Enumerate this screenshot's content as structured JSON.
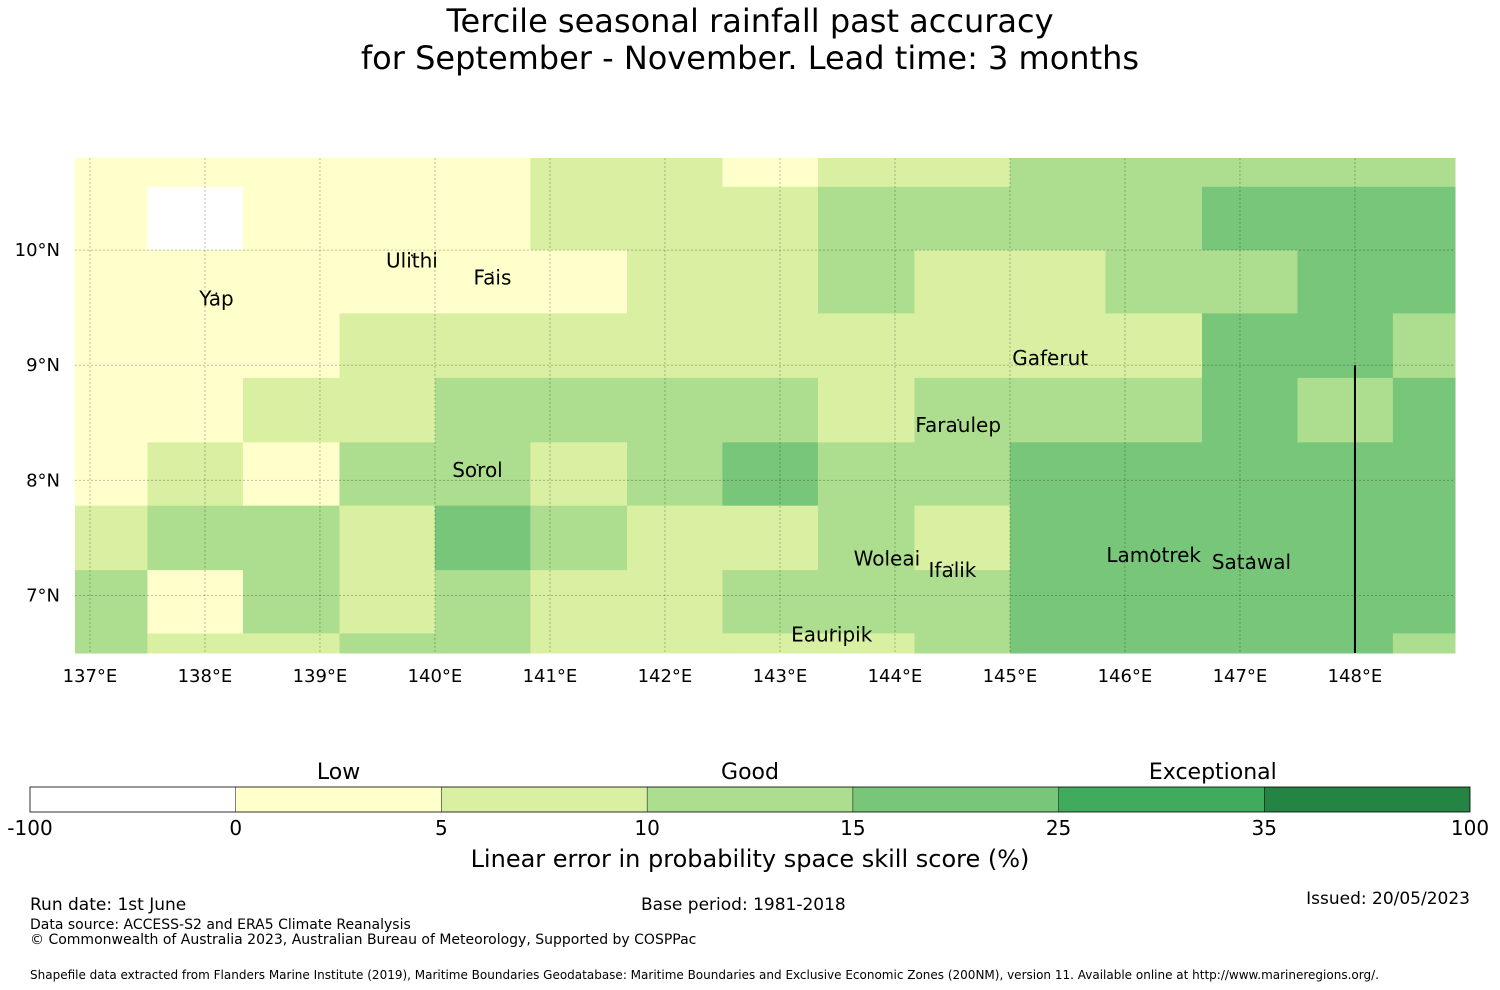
{
  "title": {
    "line1": "Tercile seasonal rainfall past accuracy",
    "line2": "for September - November. Lead time: 3 months"
  },
  "map": {
    "lon_range": [
      136.87,
      148.87
    ],
    "lat_range": [
      6.5,
      10.8
    ],
    "x_ticks": [
      "137°E",
      "138°E",
      "139°E",
      "140°E",
      "141°E",
      "142°E",
      "143°E",
      "144°E",
      "145°E",
      "146°E",
      "147°E",
      "148°E"
    ],
    "x_tick_values": [
      137,
      138,
      139,
      140,
      141,
      142,
      143,
      144,
      145,
      146,
      147,
      148
    ],
    "y_ticks": [
      "7°N",
      "8°N",
      "9°N",
      "10°N"
    ],
    "y_tick_values": [
      7,
      8,
      9,
      10
    ],
    "grid": true,
    "category_colors": {
      "W": "#ffffff",
      "A": "#ffffcc",
      "B": "#d9f0a3",
      "C": "#addd8e",
      "D": "#78c679",
      "E": "#41ab5d",
      "F": "#238443"
    },
    "cells": [
      {
        "lon": [
          136.87,
          137.5
        ],
        "lat": [
          10.55,
          10.8
        ],
        "cat": "A"
      },
      {
        "lon": [
          137.5,
          138.33
        ],
        "lat": [
          10.55,
          10.8
        ],
        "cat": "A"
      },
      {
        "lon": [
          138.33,
          140.83
        ],
        "lat": [
          10.55,
          10.8
        ],
        "cat": "A"
      },
      {
        "lon": [
          140.83,
          142.5
        ],
        "lat": [
          10.55,
          10.8
        ],
        "cat": "B"
      },
      {
        "lon": [
          142.5,
          143.33
        ],
        "lat": [
          10.55,
          10.8
        ],
        "cat": "A"
      },
      {
        "lon": [
          143.33,
          145.0
        ],
        "lat": [
          10.55,
          10.8
        ],
        "cat": "B"
      },
      {
        "lon": [
          145.0,
          148.87
        ],
        "lat": [
          10.55,
          10.8
        ],
        "cat": "C"
      },
      {
        "lon": [
          136.87,
          137.5
        ],
        "lat": [
          10.0,
          10.55
        ],
        "cat": "A"
      },
      {
        "lon": [
          137.5,
          138.33
        ],
        "lat": [
          10.0,
          10.55
        ],
        "cat": "W"
      },
      {
        "lon": [
          138.33,
          140.83
        ],
        "lat": [
          10.0,
          10.55
        ],
        "cat": "A"
      },
      {
        "lon": [
          140.83,
          143.33
        ],
        "lat": [
          10.0,
          10.55
        ],
        "cat": "B"
      },
      {
        "lon": [
          143.33,
          146.67
        ],
        "lat": [
          10.0,
          10.55
        ],
        "cat": "C"
      },
      {
        "lon": [
          146.67,
          148.87
        ],
        "lat": [
          10.0,
          10.55
        ],
        "cat": "D"
      },
      {
        "lon": [
          136.87,
          140.83
        ],
        "lat": [
          9.45,
          10.0
        ],
        "cat": "A"
      },
      {
        "lon": [
          140.83,
          141.67
        ],
        "lat": [
          9.45,
          10.0
        ],
        "cat": "A"
      },
      {
        "lon": [
          141.67,
          143.33
        ],
        "lat": [
          9.45,
          10.0
        ],
        "cat": "B"
      },
      {
        "lon": [
          143.33,
          144.17
        ],
        "lat": [
          9.45,
          10.0
        ],
        "cat": "C"
      },
      {
        "lon": [
          144.17,
          145.83
        ],
        "lat": [
          9.45,
          10.0
        ],
        "cat": "B"
      },
      {
        "lon": [
          145.83,
          147.5
        ],
        "lat": [
          9.45,
          10.0
        ],
        "cat": "C"
      },
      {
        "lon": [
          147.5,
          148.87
        ],
        "lat": [
          9.45,
          10.0
        ],
        "cat": "D"
      },
      {
        "lon": [
          136.87,
          139.17
        ],
        "lat": [
          8.89,
          9.45
        ],
        "cat": "A"
      },
      {
        "lon": [
          139.17,
          146.67
        ],
        "lat": [
          8.89,
          9.45
        ],
        "cat": "B"
      },
      {
        "lon": [
          146.67,
          148.33
        ],
        "lat": [
          8.89,
          9.45
        ],
        "cat": "D"
      },
      {
        "lon": [
          148.33,
          148.87
        ],
        "lat": [
          8.89,
          9.45
        ],
        "cat": "C"
      },
      {
        "lon": [
          136.87,
          138.33
        ],
        "lat": [
          8.33,
          8.89
        ],
        "cat": "A"
      },
      {
        "lon": [
          138.33,
          140.0
        ],
        "lat": [
          8.33,
          8.89
        ],
        "cat": "B"
      },
      {
        "lon": [
          140.0,
          143.33
        ],
        "lat": [
          8.33,
          8.89
        ],
        "cat": "C"
      },
      {
        "lon": [
          143.33,
          144.17
        ],
        "lat": [
          8.33,
          8.89
        ],
        "cat": "B"
      },
      {
        "lon": [
          144.17,
          146.67
        ],
        "lat": [
          8.33,
          8.89
        ],
        "cat": "C"
      },
      {
        "lon": [
          146.67,
          147.5
        ],
        "lat": [
          8.33,
          8.89
        ],
        "cat": "D"
      },
      {
        "lon": [
          147.5,
          148.33
        ],
        "lat": [
          8.33,
          8.89
        ],
        "cat": "C"
      },
      {
        "lon": [
          148.33,
          148.87
        ],
        "lat": [
          8.33,
          8.89
        ],
        "cat": "D"
      },
      {
        "lon": [
          136.87,
          137.5
        ],
        "lat": [
          7.78,
          8.33
        ],
        "cat": "A"
      },
      {
        "lon": [
          137.5,
          138.33
        ],
        "lat": [
          7.78,
          8.33
        ],
        "cat": "B"
      },
      {
        "lon": [
          138.33,
          139.17
        ],
        "lat": [
          7.78,
          8.33
        ],
        "cat": "A"
      },
      {
        "lon": [
          139.17,
          140.83
        ],
        "lat": [
          7.78,
          8.33
        ],
        "cat": "C"
      },
      {
        "lon": [
          140.83,
          141.67
        ],
        "lat": [
          7.78,
          8.33
        ],
        "cat": "B"
      },
      {
        "lon": [
          141.67,
          142.5
        ],
        "lat": [
          7.78,
          8.33
        ],
        "cat": "C"
      },
      {
        "lon": [
          142.5,
          143.33
        ],
        "lat": [
          7.78,
          8.33
        ],
        "cat": "D"
      },
      {
        "lon": [
          143.33,
          145.0
        ],
        "lat": [
          7.78,
          8.33
        ],
        "cat": "C"
      },
      {
        "lon": [
          145.0,
          148.87
        ],
        "lat": [
          7.78,
          8.33
        ],
        "cat": "D"
      },
      {
        "lon": [
          136.87,
          137.5
        ],
        "lat": [
          7.22,
          7.78
        ],
        "cat": "B"
      },
      {
        "lon": [
          137.5,
          139.17
        ],
        "lat": [
          7.22,
          7.78
        ],
        "cat": "C"
      },
      {
        "lon": [
          139.17,
          140.0
        ],
        "lat": [
          7.22,
          7.78
        ],
        "cat": "B"
      },
      {
        "lon": [
          140.0,
          140.83
        ],
        "lat": [
          7.22,
          7.78
        ],
        "cat": "D"
      },
      {
        "lon": [
          140.83,
          141.67
        ],
        "lat": [
          7.22,
          7.78
        ],
        "cat": "C"
      },
      {
        "lon": [
          141.67,
          143.33
        ],
        "lat": [
          7.22,
          7.78
        ],
        "cat": "B"
      },
      {
        "lon": [
          143.33,
          144.17
        ],
        "lat": [
          7.22,
          7.78
        ],
        "cat": "C"
      },
      {
        "lon": [
          144.17,
          145.0
        ],
        "lat": [
          7.22,
          7.78
        ],
        "cat": "B"
      },
      {
        "lon": [
          145.0,
          148.87
        ],
        "lat": [
          7.22,
          7.78
        ],
        "cat": "D"
      },
      {
        "lon": [
          136.87,
          137.5
        ],
        "lat": [
          6.67,
          7.22
        ],
        "cat": "C"
      },
      {
        "lon": [
          137.5,
          138.33
        ],
        "lat": [
          6.67,
          7.22
        ],
        "cat": "A"
      },
      {
        "lon": [
          138.33,
          139.17
        ],
        "lat": [
          6.67,
          7.22
        ],
        "cat": "C"
      },
      {
        "lon": [
          139.17,
          140.0
        ],
        "lat": [
          6.67,
          7.22
        ],
        "cat": "B"
      },
      {
        "lon": [
          140.0,
          140.83
        ],
        "lat": [
          6.67,
          7.22
        ],
        "cat": "C"
      },
      {
        "lon": [
          140.83,
          142.5
        ],
        "lat": [
          6.67,
          7.22
        ],
        "cat": "B"
      },
      {
        "lon": [
          142.5,
          145.0
        ],
        "lat": [
          6.67,
          7.22
        ],
        "cat": "C"
      },
      {
        "lon": [
          145.0,
          148.87
        ],
        "lat": [
          6.67,
          7.22
        ],
        "cat": "D"
      },
      {
        "lon": [
          136.87,
          137.5
        ],
        "lat": [
          6.5,
          6.67
        ],
        "cat": "C"
      },
      {
        "lon": [
          137.5,
          139.17
        ],
        "lat": [
          6.5,
          6.67
        ],
        "cat": "B"
      },
      {
        "lon": [
          139.17,
          140.0
        ],
        "lat": [
          6.5,
          6.67
        ],
        "cat": "C"
      },
      {
        "lon": [
          140.0,
          140.83
        ],
        "lat": [
          6.5,
          6.67
        ],
        "cat": "C"
      },
      {
        "lon": [
          140.83,
          142.5
        ],
        "lat": [
          6.5,
          6.67
        ],
        "cat": "B"
      },
      {
        "lon": [
          142.5,
          144.17
        ],
        "lat": [
          6.5,
          6.67
        ],
        "cat": "B"
      },
      {
        "lon": [
          144.17,
          145.0
        ],
        "lat": [
          6.5,
          6.67
        ],
        "cat": "C"
      },
      {
        "lon": [
          145.0,
          148.33
        ],
        "lat": [
          6.5,
          6.67
        ],
        "cat": "D"
      },
      {
        "lon": [
          148.33,
          148.87
        ],
        "lat": [
          6.5,
          6.67
        ],
        "cat": "C"
      }
    ],
    "places": [
      {
        "name": "Ulithi",
        "lon": 139.8,
        "lat": 9.85
      },
      {
        "name": "Fais",
        "lon": 140.5,
        "lat": 9.7
      },
      {
        "name": "Yap",
        "lon": 138.1,
        "lat": 9.52
      },
      {
        "name": "Gaferut",
        "lon": 145.35,
        "lat": 9.0
      },
      {
        "name": "Faraulep",
        "lon": 144.55,
        "lat": 8.42
      },
      {
        "name": "Sorol",
        "lon": 140.37,
        "lat": 8.03
      },
      {
        "name": "Woleai",
        "lon": 143.93,
        "lat": 7.26
      },
      {
        "name": "Ifalik",
        "lon": 144.5,
        "lat": 7.16
      },
      {
        "name": "Lamotrek",
        "lon": 146.25,
        "lat": 7.29
      },
      {
        "name": "Satawal",
        "lon": 147.1,
        "lat": 7.23
      },
      {
        "name": "Eauripik",
        "lon": 143.45,
        "lat": 6.6
      }
    ],
    "boundary_line": {
      "lon": 148.0,
      "lat": [
        6.5,
        9.0
      ]
    }
  },
  "colorbar": {
    "bins": [
      {
        "color": "#ffffff"
      },
      {
        "color": "#ffffcc"
      },
      {
        "color": "#d9f0a3"
      },
      {
        "color": "#addd8e"
      },
      {
        "color": "#78c679"
      },
      {
        "color": "#41ab5d"
      },
      {
        "color": "#238443"
      }
    ],
    "ticks": [
      "-100",
      "0",
      "5",
      "10",
      "15",
      "25",
      "35",
      "100"
    ],
    "categories": [
      "Low",
      "Good",
      "Exceptional"
    ],
    "title": "Linear error in probability space skill score (%)"
  },
  "footer": {
    "run_date": "Run date: 1st June",
    "base_period": "Base period: 1981-2018",
    "issued": "Issued: 20/05/2023",
    "data_source": "Data source: ACCESS-S2 and ERA5 Climate Reanalysis",
    "copyright": "© Commonwealth of Australia 2023, Australian Bureau of Meteorology, Supported by COSPPac",
    "shapefile": "Shapefile data extracted from Flanders Marine Institute (2019), Maritime Boundaries Geodatabase: Maritime Boundaries and Exclusive Economic Zones (200NM), version 11. Available online at http://www.marineregions.org/."
  }
}
